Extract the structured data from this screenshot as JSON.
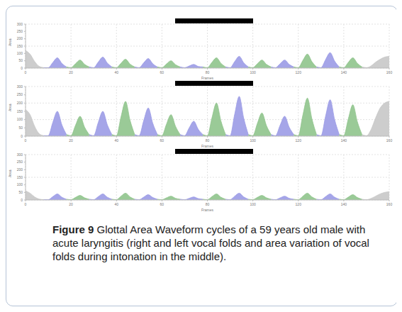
{
  "chart_data": [
    {
      "type": "area",
      "x_label": "Frames",
      "y_label": "Area",
      "grid": true,
      "xlim": [
        0,
        160
      ],
      "xticks": [
        0,
        20,
        40,
        60,
        80,
        100,
        120,
        140,
        160
      ],
      "ylim": [
        0,
        300
      ],
      "yticks": [
        0,
        50,
        100,
        150,
        200,
        250,
        300
      ],
      "x": [
        0,
        2,
        4,
        6,
        8,
        10,
        12,
        14,
        16,
        18,
        20,
        22,
        24,
        26,
        28,
        30,
        32,
        34,
        36,
        38,
        40,
        42,
        44,
        46,
        48,
        50,
        52,
        54,
        56,
        58,
        60,
        62,
        64,
        66,
        68,
        70,
        72,
        74,
        76,
        78,
        80,
        82,
        84,
        86,
        88,
        90,
        92,
        94,
        96,
        98,
        100,
        102,
        104,
        106,
        108,
        110,
        112,
        114,
        116,
        118,
        120,
        122,
        124,
        126,
        128,
        130,
        132,
        134,
        136,
        138,
        140,
        142,
        144,
        146,
        148,
        150,
        152,
        154,
        156,
        158,
        160
      ],
      "values": [
        120,
        95,
        45,
        12,
        3,
        3,
        38,
        70,
        32,
        8,
        3,
        30,
        55,
        25,
        8,
        3,
        41,
        75,
        34,
        8,
        3,
        33,
        60,
        27,
        8,
        3,
        36,
        65,
        29,
        8,
        3,
        28,
        50,
        23,
        8,
        3,
        14,
        25,
        11,
        8,
        3,
        39,
        70,
        32,
        8,
        3,
        44,
        80,
        36,
        8,
        3,
        30,
        55,
        25,
        8,
        3,
        30,
        55,
        25,
        8,
        3,
        52,
        95,
        43,
        8,
        3,
        58,
        105,
        47,
        8,
        3,
        39,
        70,
        32,
        8,
        3,
        15,
        40,
        60,
        75,
        80
      ],
      "colors": [
        "#c8c8c8",
        "#c8c8c8",
        "#c8c8c8",
        "#c8c8c8",
        "#c8c8c8",
        "#9b9be6",
        "#9b9be6",
        "#9b9be6",
        "#9b9be6",
        "#9b9be6",
        "#8fc48c",
        "#8fc48c",
        "#8fc48c",
        "#8fc48c",
        "#8fc48c",
        "#9b9be6",
        "#9b9be6",
        "#9b9be6",
        "#9b9be6",
        "#9b9be6",
        "#8fc48c",
        "#8fc48c",
        "#8fc48c",
        "#8fc48c",
        "#8fc48c",
        "#9b9be6",
        "#9b9be6",
        "#9b9be6",
        "#9b9be6",
        "#9b9be6",
        "#8fc48c",
        "#8fc48c",
        "#8fc48c",
        "#8fc48c",
        "#8fc48c",
        "#9b9be6",
        "#9b9be6",
        "#9b9be6",
        "#9b9be6",
        "#9b9be6",
        "#8fc48c",
        "#8fc48c",
        "#8fc48c",
        "#8fc48c",
        "#8fc48c",
        "#9b9be6",
        "#9b9be6",
        "#9b9be6",
        "#9b9be6",
        "#9b9be6",
        "#8fc48c",
        "#8fc48c",
        "#8fc48c",
        "#8fc48c",
        "#8fc48c",
        "#9b9be6",
        "#9b9be6",
        "#9b9be6",
        "#9b9be6",
        "#9b9be6",
        "#8fc48c",
        "#8fc48c",
        "#8fc48c",
        "#8fc48c",
        "#8fc48c",
        "#9b9be6",
        "#9b9be6",
        "#9b9be6",
        "#9b9be6",
        "#9b9be6",
        "#8fc48c",
        "#8fc48c",
        "#8fc48c",
        "#8fc48c",
        "#8fc48c",
        "#c8c8c8",
        "#c8c8c8",
        "#c8c8c8",
        "#c8c8c8",
        "#c8c8c8",
        "#c8c8c8"
      ]
    },
    {
      "type": "area",
      "x_label": "Frames",
      "y_label": "Area",
      "grid": true,
      "xlim": [
        0,
        160
      ],
      "xticks": [
        0,
        20,
        40,
        60,
        80,
        100,
        120,
        140,
        160
      ],
      "ylim": [
        0,
        300
      ],
      "yticks": [
        0,
        50,
        100,
        150,
        200,
        250,
        300
      ],
      "x": [
        0,
        2,
        4,
        6,
        8,
        10,
        12,
        14,
        16,
        18,
        20,
        22,
        24,
        26,
        28,
        30,
        32,
        34,
        36,
        38,
        40,
        42,
        44,
        46,
        48,
        50,
        52,
        54,
        56,
        58,
        60,
        62,
        64,
        66,
        68,
        70,
        72,
        74,
        76,
        78,
        80,
        82,
        84,
        86,
        88,
        90,
        92,
        94,
        96,
        98,
        100,
        102,
        104,
        106,
        108,
        110,
        112,
        114,
        116,
        118,
        120,
        122,
        124,
        126,
        128,
        130,
        132,
        134,
        136,
        138,
        140,
        142,
        144,
        146,
        148,
        150,
        152,
        154,
        156,
        158,
        160
      ],
      "values": [
        160,
        130,
        60,
        15,
        3,
        3,
        83,
        150,
        68,
        10,
        3,
        66,
        120,
        54,
        10,
        3,
        83,
        150,
        68,
        10,
        3,
        116,
        210,
        95,
        10,
        3,
        94,
        170,
        77,
        10,
        3,
        72,
        130,
        59,
        10,
        3,
        50,
        90,
        41,
        10,
        3,
        110,
        200,
        90,
        10,
        3,
        132,
        240,
        108,
        10,
        3,
        77,
        140,
        63,
        10,
        3,
        66,
        120,
        54,
        10,
        3,
        127,
        230,
        104,
        10,
        3,
        121,
        220,
        99,
        10,
        3,
        105,
        190,
        86,
        10,
        3,
        40,
        110,
        170,
        200,
        210
      ],
      "colors": [
        "#c8c8c8",
        "#c8c8c8",
        "#c8c8c8",
        "#c8c8c8",
        "#c8c8c8",
        "#9b9be6",
        "#9b9be6",
        "#9b9be6",
        "#9b9be6",
        "#9b9be6",
        "#8fc48c",
        "#8fc48c",
        "#8fc48c",
        "#8fc48c",
        "#8fc48c",
        "#9b9be6",
        "#9b9be6",
        "#9b9be6",
        "#9b9be6",
        "#9b9be6",
        "#8fc48c",
        "#8fc48c",
        "#8fc48c",
        "#8fc48c",
        "#8fc48c",
        "#9b9be6",
        "#9b9be6",
        "#9b9be6",
        "#9b9be6",
        "#9b9be6",
        "#8fc48c",
        "#8fc48c",
        "#8fc48c",
        "#8fc48c",
        "#8fc48c",
        "#9b9be6",
        "#9b9be6",
        "#9b9be6",
        "#9b9be6",
        "#9b9be6",
        "#8fc48c",
        "#8fc48c",
        "#8fc48c",
        "#8fc48c",
        "#8fc48c",
        "#9b9be6",
        "#9b9be6",
        "#9b9be6",
        "#9b9be6",
        "#9b9be6",
        "#8fc48c",
        "#8fc48c",
        "#8fc48c",
        "#8fc48c",
        "#8fc48c",
        "#9b9be6",
        "#9b9be6",
        "#9b9be6",
        "#9b9be6",
        "#9b9be6",
        "#8fc48c",
        "#8fc48c",
        "#8fc48c",
        "#8fc48c",
        "#8fc48c",
        "#9b9be6",
        "#9b9be6",
        "#9b9be6",
        "#9b9be6",
        "#9b9be6",
        "#8fc48c",
        "#8fc48c",
        "#8fc48c",
        "#8fc48c",
        "#8fc48c",
        "#c8c8c8",
        "#c8c8c8",
        "#c8c8c8",
        "#c8c8c8",
        "#c8c8c8",
        "#c8c8c8"
      ]
    },
    {
      "type": "area",
      "x_label": "Frames",
      "y_label": "Area",
      "grid": true,
      "xlim": [
        0,
        160
      ],
      "xticks": [
        0,
        20,
        40,
        60,
        80,
        100,
        120,
        140,
        160
      ],
      "ylim": [
        0,
        300
      ],
      "yticks": [
        0,
        50,
        100,
        150,
        200,
        250,
        300
      ],
      "x": [
        0,
        2,
        4,
        6,
        8,
        10,
        12,
        14,
        16,
        18,
        20,
        22,
        24,
        26,
        28,
        30,
        32,
        34,
        36,
        38,
        40,
        42,
        44,
        46,
        48,
        50,
        52,
        54,
        56,
        58,
        60,
        62,
        64,
        66,
        68,
        70,
        72,
        74,
        76,
        78,
        80,
        82,
        84,
        86,
        88,
        90,
        92,
        94,
        96,
        98,
        100,
        102,
        104,
        106,
        108,
        110,
        112,
        114,
        116,
        118,
        120,
        122,
        124,
        126,
        128,
        130,
        132,
        134,
        136,
        138,
        140,
        142,
        144,
        146,
        148,
        150,
        152,
        154,
        156,
        158,
        160
      ],
      "values": [
        60,
        45,
        20,
        6,
        2,
        2,
        22,
        40,
        18,
        5,
        2,
        17,
        30,
        14,
        5,
        2,
        22,
        40,
        18,
        5,
        2,
        25,
        45,
        20,
        5,
        2,
        19,
        35,
        16,
        5,
        2,
        14,
        25,
        11,
        5,
        2,
        11,
        20,
        9,
        5,
        2,
        22,
        40,
        18,
        5,
        2,
        25,
        45,
        20,
        5,
        2,
        17,
        30,
        14,
        5,
        2,
        14,
        25,
        11,
        5,
        2,
        25,
        45,
        20,
        5,
        2,
        22,
        40,
        18,
        5,
        2,
        19,
        35,
        16,
        5,
        2,
        10,
        25,
        40,
        50,
        55
      ],
      "colors": [
        "#c8c8c8",
        "#c8c8c8",
        "#c8c8c8",
        "#c8c8c8",
        "#c8c8c8",
        "#9b9be6",
        "#9b9be6",
        "#9b9be6",
        "#9b9be6",
        "#9b9be6",
        "#8fc48c",
        "#8fc48c",
        "#8fc48c",
        "#8fc48c",
        "#8fc48c",
        "#9b9be6",
        "#9b9be6",
        "#9b9be6",
        "#9b9be6",
        "#9b9be6",
        "#8fc48c",
        "#8fc48c",
        "#8fc48c",
        "#8fc48c",
        "#8fc48c",
        "#9b9be6",
        "#9b9be6",
        "#9b9be6",
        "#9b9be6",
        "#9b9be6",
        "#8fc48c",
        "#8fc48c",
        "#8fc48c",
        "#8fc48c",
        "#8fc48c",
        "#9b9be6",
        "#9b9be6",
        "#9b9be6",
        "#9b9be6",
        "#9b9be6",
        "#8fc48c",
        "#8fc48c",
        "#8fc48c",
        "#8fc48c",
        "#8fc48c",
        "#9b9be6",
        "#9b9be6",
        "#9b9be6",
        "#9b9be6",
        "#9b9be6",
        "#8fc48c",
        "#8fc48c",
        "#8fc48c",
        "#8fc48c",
        "#8fc48c",
        "#9b9be6",
        "#9b9be6",
        "#9b9be6",
        "#9b9be6",
        "#9b9be6",
        "#8fc48c",
        "#8fc48c",
        "#8fc48c",
        "#8fc48c",
        "#8fc48c",
        "#9b9be6",
        "#9b9be6",
        "#9b9be6",
        "#9b9be6",
        "#9b9be6",
        "#8fc48c",
        "#8fc48c",
        "#8fc48c",
        "#8fc48c",
        "#8fc48c",
        "#c8c8c8",
        "#c8c8c8",
        "#c8c8c8",
        "#c8c8c8",
        "#c8c8c8",
        "#c8c8c8"
      ]
    }
  ],
  "caption": {
    "label": "Figure 9",
    "text": "Glottal Area Waveform cycles of a 59 years old male with acute laryngitis (right and left vocal folds and area variation of vocal folds during intonation in the middle)."
  }
}
